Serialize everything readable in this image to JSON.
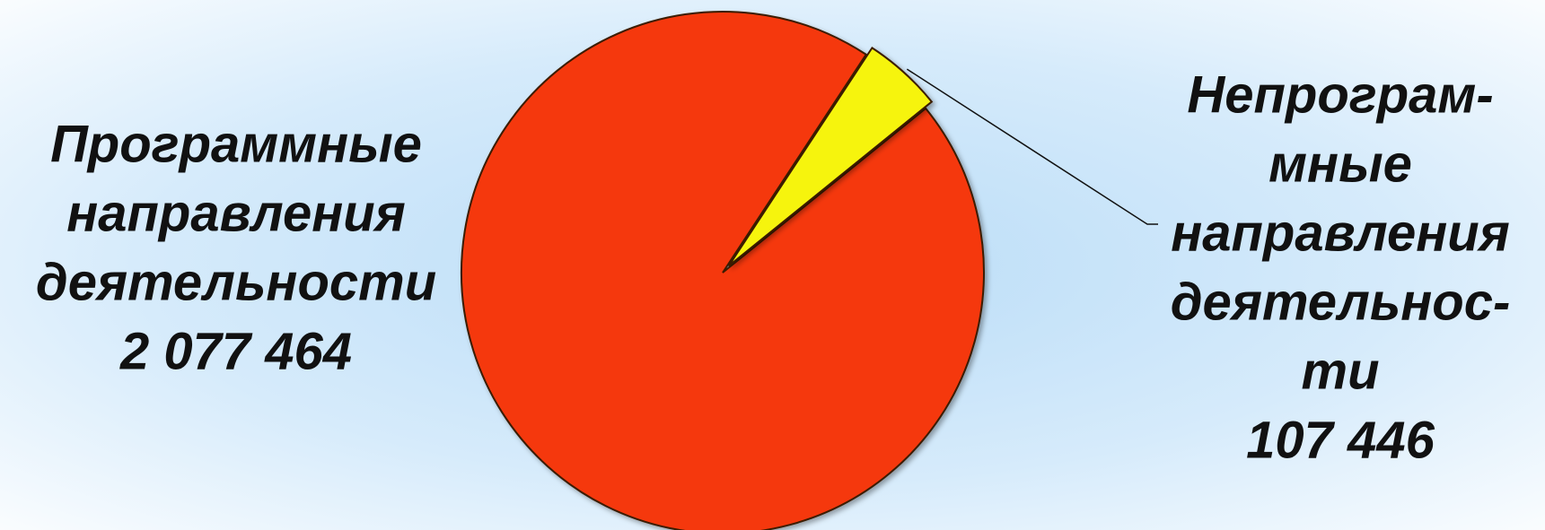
{
  "chart_data": {
    "type": "pie",
    "categories": [
      [
        "Программные",
        "направления",
        "деятельности"
      ],
      [
        "Непрограм-",
        "мные",
        "направления",
        "деятельнос-",
        "ти"
      ]
    ],
    "values": [
      2077464,
      107446
    ],
    "value_labels": [
      "2 077 464",
      "107 446"
    ],
    "colors": [
      "#f5380a",
      "#f6f40c"
    ]
  }
}
